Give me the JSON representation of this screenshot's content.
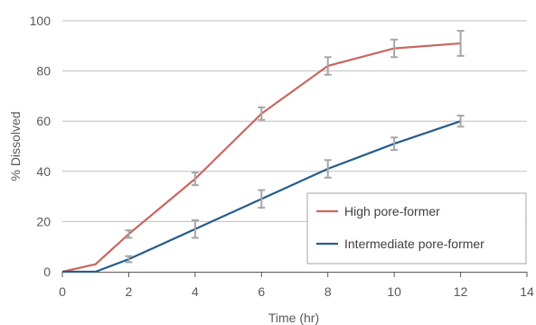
{
  "chart_data": {
    "type": "line",
    "title": "",
    "xlabel": "Time (hr)",
    "ylabel": "% Dissolved",
    "xlim": [
      0,
      14
    ],
    "ylim": [
      0,
      100
    ],
    "xticks": [
      0,
      2,
      4,
      6,
      8,
      10,
      12,
      14
    ],
    "yticks": [
      0,
      20,
      40,
      60,
      80,
      100
    ],
    "grid": "horizontal",
    "legend_position": "lower-right",
    "series": [
      {
        "name": "High pore-former",
        "color": "#C9665E",
        "x": [
          0,
          1,
          2,
          4,
          6,
          8,
          10,
          12
        ],
        "y": [
          0,
          3,
          15,
          37,
          63,
          82,
          89,
          91
        ],
        "error": [
          0,
          0,
          1.5,
          2.5,
          2.5,
          3.5,
          3.5,
          5
        ]
      },
      {
        "name": "Intermediate pore-former",
        "color": "#265D8A",
        "x": [
          0,
          1,
          2,
          4,
          6,
          8,
          10,
          12
        ],
        "y": [
          0,
          0,
          5,
          17,
          29,
          41,
          51,
          60
        ],
        "error": [
          0,
          0,
          1.2,
          3.5,
          3.5,
          3.5,
          2.5,
          2.2
        ]
      }
    ]
  }
}
